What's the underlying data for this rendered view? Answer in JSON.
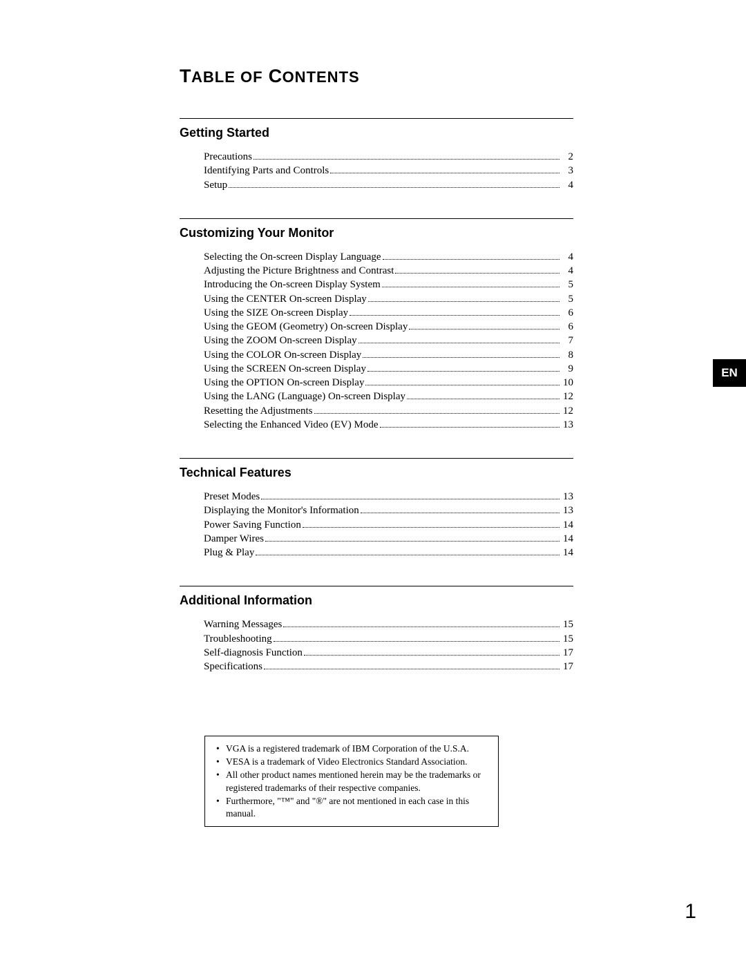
{
  "title_main": "T",
  "title_rest": "ABLE OF",
  "title_main2": " C",
  "title_rest2": "ONTENTS",
  "lang_tab": "EN",
  "page_number": "1",
  "sections": [
    {
      "heading": "Getting Started",
      "items": [
        {
          "label": "Precautions",
          "page": "2"
        },
        {
          "label": "Identifying Parts and Controls",
          "page": "3"
        },
        {
          "label": "Setup",
          "page": "4"
        }
      ]
    },
    {
      "heading": "Customizing Your Monitor",
      "items": [
        {
          "label": "Selecting the On-screen Display Language",
          "page": "4"
        },
        {
          "label": "Adjusting the Picture Brightness and Contrast",
          "page": "4"
        },
        {
          "label": "Introducing the On-screen Display System",
          "page": "5"
        },
        {
          "label": "Using the CENTER On-screen Display",
          "page": "5"
        },
        {
          "label": "Using the SIZE On-screen Display",
          "page": "6"
        },
        {
          "label": "Using the GEOM (Geometry) On-screen Display",
          "page": "6"
        },
        {
          "label": "Using the ZOOM On-screen Display",
          "page": "7"
        },
        {
          "label": "Using the COLOR On-screen Display",
          "page": "8"
        },
        {
          "label": "Using the SCREEN On-screen Display",
          "page": "9"
        },
        {
          "label": "Using the OPTION On-screen Display",
          "page": "10"
        },
        {
          "label": "Using the LANG (Language) On-screen Display",
          "page": "12"
        },
        {
          "label": "Resetting the Adjustments",
          "page": "12"
        },
        {
          "label": "Selecting the Enhanced Video (EV) Mode",
          "page": "13"
        }
      ]
    },
    {
      "heading": "Technical Features",
      "items": [
        {
          "label": "Preset Modes",
          "page": "13"
        },
        {
          "label": "Displaying the Monitor's Information",
          "page": "13"
        },
        {
          "label": "Power Saving Function",
          "page": "14"
        },
        {
          "label": "Damper Wires",
          "page": "14"
        },
        {
          "label": "Plug & Play",
          "page": "14"
        }
      ]
    },
    {
      "heading": "Additional Information",
      "items": [
        {
          "label": "Warning Messages",
          "page": "15"
        },
        {
          "label": "Troubleshooting",
          "page": "15"
        },
        {
          "label": "Self-diagnosis Function",
          "page": "17"
        },
        {
          "label": "Specifications",
          "page": "17"
        }
      ]
    }
  ],
  "trademarks": [
    "VGA is a registered trademark of IBM Corporation of the U.S.A.",
    "VESA is a trademark of Video Electronics Standard Association.",
    "All other product names mentioned herein may be the trademarks or registered trademarks of their respective companies.",
    "Furthermore, \"™\" and \"®\" are not mentioned in each case in this manual."
  ]
}
